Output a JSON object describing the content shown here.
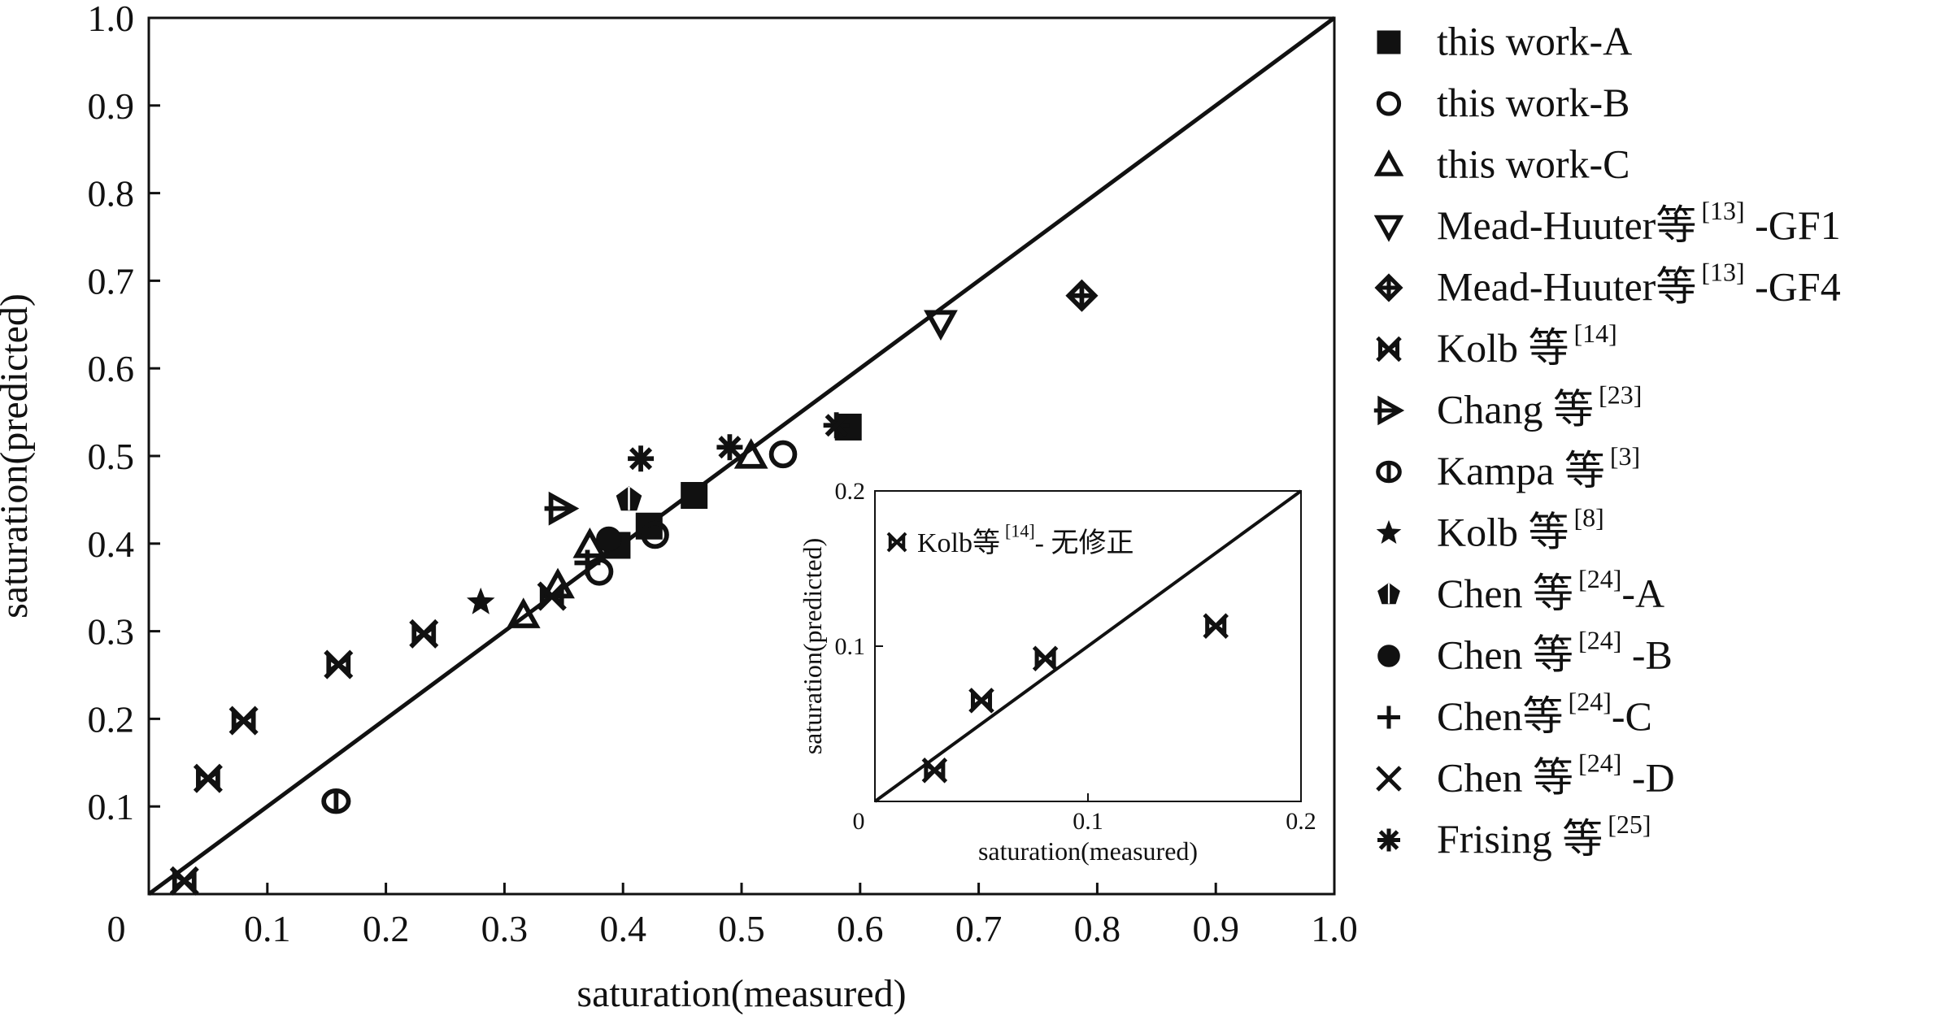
{
  "chart_data": [
    {
      "type": "scatter",
      "xlabel": "saturation(measured)",
      "ylabel": "saturation(predicted)",
      "xlim": [
        0,
        1.0
      ],
      "ylim": [
        0,
        1.0
      ],
      "origin_label": "0",
      "x_ticks": [
        {
          "value": 0.1,
          "label": "0.1"
        },
        {
          "value": 0.2,
          "label": "0.2"
        },
        {
          "value": 0.3,
          "label": "0.3"
        },
        {
          "value": 0.4,
          "label": "0.4"
        },
        {
          "value": 0.5,
          "label": "0.5"
        },
        {
          "value": 0.6,
          "label": "0.6"
        },
        {
          "value": 0.7,
          "label": "0.7"
        },
        {
          "value": 0.8,
          "label": "0.8"
        },
        {
          "value": 0.9,
          "label": "0.9"
        },
        {
          "value": 1.0,
          "label": "1.0"
        }
      ],
      "y_ticks": [
        {
          "value": 0.1,
          "label": "0.1"
        },
        {
          "value": 0.2,
          "label": "0.2"
        },
        {
          "value": 0.3,
          "label": "0.3"
        },
        {
          "value": 0.4,
          "label": "0.4"
        },
        {
          "value": 0.5,
          "label": "0.5"
        },
        {
          "value": 0.6,
          "label": "0.6"
        },
        {
          "value": 0.7,
          "label": "0.7"
        },
        {
          "value": 0.8,
          "label": "0.8"
        },
        {
          "value": 0.9,
          "label": "0.9"
        },
        {
          "value": 1.0,
          "label": "1.0"
        }
      ],
      "reference_line": {
        "x": [
          0,
          1.0
        ],
        "y": [
          0,
          1.0
        ]
      },
      "series": [
        {
          "name": "this work-A",
          "label": "this work-A",
          "sup": "",
          "suffix": "",
          "marker": "filled-square",
          "x": [
            0.395,
            0.422,
            0.46,
            0.59
          ],
          "y": [
            0.398,
            0.42,
            0.455,
            0.533
          ]
        },
        {
          "name": "this work-B",
          "label": "this work-B",
          "sup": "",
          "suffix": "",
          "marker": "open-circle",
          "x": [
            0.38,
            0.427,
            0.535
          ],
          "y": [
            0.368,
            0.41,
            0.502
          ]
        },
        {
          "name": "this work-C",
          "label": "this work-C",
          "sup": "",
          "suffix": "",
          "marker": "open-triangle",
          "x": [
            0.316,
            0.345,
            0.372,
            0.508
          ],
          "y": [
            0.318,
            0.352,
            0.398,
            0.5
          ]
        },
        {
          "name": "Mead-Huuter等[13]-GF1",
          "label": "Mead-Huuter等",
          "sup": "[13]",
          "suffix": " -GF1",
          "marker": "open-down-triangle",
          "x": [
            0.668
          ],
          "y": [
            0.652
          ]
        },
        {
          "name": "Mead-Huuter等[13]-GF4",
          "label": "Mead-Huuter等",
          "sup": "[13]",
          "suffix": " -GF4",
          "marker": "crossed-diamond",
          "x": [
            0.787
          ],
          "y": [
            0.683
          ]
        },
        {
          "name": "Kolb等[14]",
          "label": "Kolb 等",
          "sup": "[14]",
          "suffix": "",
          "marker": "bowtie-x",
          "x": [
            0.03,
            0.05,
            0.08,
            0.16,
            0.232,
            0.34
          ],
          "y": [
            0.015,
            0.132,
            0.198,
            0.262,
            0.297,
            0.34
          ]
        },
        {
          "name": "Chang 等[23]",
          "label": "Chang  等",
          "sup": "[23]",
          "suffix": "",
          "marker": "open-right-triangle",
          "x": [
            0.348
          ],
          "y": [
            0.44
          ]
        },
        {
          "name": "Kampa 等[3]",
          "label": "Kampa 等",
          "sup": "[3]",
          "suffix": "",
          "marker": "circle-bar",
          "x": [
            0.158
          ],
          "y": [
            0.106
          ]
        },
        {
          "name": "Kolb等[8]",
          "label": "Kolb 等",
          "sup": "[8]",
          "suffix": "",
          "marker": "filled-star",
          "x": [
            0.28
          ],
          "y": [
            0.333
          ]
        },
        {
          "name": "Chen 等[24]-A",
          "label": "Chen 等",
          "sup": "[24]",
          "suffix": "-A",
          "marker": "filled-pentagon",
          "x": [
            0.405
          ],
          "y": [
            0.45
          ]
        },
        {
          "name": "Chen 等[24]-B",
          "label": "Chen 等",
          "sup": "[24]",
          "suffix": " -B",
          "marker": "filled-circle",
          "x": [
            0.388
          ],
          "y": [
            0.405
          ]
        },
        {
          "name": "Chen等[24]-C",
          "label": "Chen等",
          "sup": "[24]",
          "suffix": "-C",
          "marker": "plus",
          "x": [
            0.37
          ],
          "y": [
            0.378
          ]
        },
        {
          "name": "Chen 等[24]-D",
          "label": "Chen 等",
          "sup": "[24]",
          "suffix": " -D",
          "marker": "x-cross",
          "x": [
            0.34
          ],
          "y": [
            0.34
          ]
        },
        {
          "name": "Frising 等[25]",
          "label": "Frising 等",
          "sup": "[25]",
          "suffix": "",
          "marker": "asterisk",
          "x": [
            0.415,
            0.49,
            0.58
          ],
          "y": [
            0.497,
            0.51,
            0.535
          ]
        }
      ]
    },
    {
      "type": "scatter",
      "inset": true,
      "xlabel": "saturation(measured)",
      "ylabel": "saturation(predicted)",
      "xlim": [
        0,
        0.2
      ],
      "ylim": [
        0,
        0.2
      ],
      "origin_label": "0",
      "x_ticks": [
        {
          "value": 0.1,
          "label": "0.1"
        },
        {
          "value": 0.2,
          "label": "0.2"
        }
      ],
      "y_ticks": [
        {
          "value": 0.1,
          "label": "0.1"
        },
        {
          "value": 0.2,
          "label": "0.2"
        }
      ],
      "reference_line": {
        "x": [
          0,
          0.2
        ],
        "y": [
          0,
          0.2
        ]
      },
      "series": [
        {
          "name": "Kolb等[14]-无修正",
          "label": "Kolb等",
          "sup": "[14]",
          "suffix": "- 无修正",
          "marker": "bowtie-x",
          "x": [
            0.028,
            0.05,
            0.08,
            0.16
          ],
          "y": [
            0.02,
            0.065,
            0.092,
            0.113
          ]
        }
      ]
    }
  ]
}
